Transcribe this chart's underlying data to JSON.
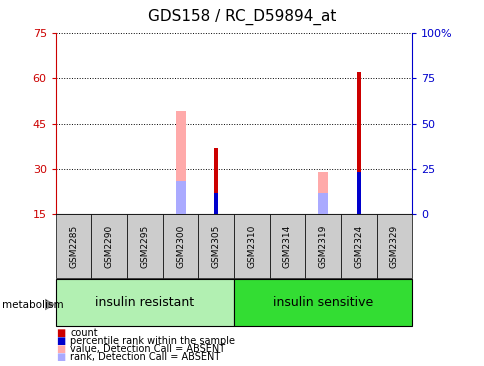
{
  "title": "GDS158 / RC_D59894_at",
  "samples": [
    "GSM2285",
    "GSM2290",
    "GSM2295",
    "GSM2300",
    "GSM2305",
    "GSM2310",
    "GSM2314",
    "GSM2319",
    "GSM2324",
    "GSM2329"
  ],
  "groups": [
    {
      "label": "insulin resistant",
      "start": 0,
      "end": 4,
      "color": "#b2f0b2"
    },
    {
      "label": "insulin sensitive",
      "start": 5,
      "end": 9,
      "color": "#33dd33"
    }
  ],
  "ylim_left": [
    15,
    75
  ],
  "ylim_right": [
    0,
    100
  ],
  "yticks_left": [
    15,
    30,
    45,
    60,
    75
  ],
  "yticks_right": [
    0,
    25,
    50,
    75,
    100
  ],
  "yticklabels_right": [
    "0",
    "25",
    "50",
    "75",
    "100%"
  ],
  "count_bars": {
    "color": "#cc0000",
    "data": [
      0,
      0,
      0,
      0,
      37,
      0,
      0,
      0,
      62,
      0
    ]
  },
  "rank_bars": {
    "color": "#0000cc",
    "data": [
      0,
      0,
      0,
      0,
      22,
      0,
      0,
      0,
      29,
      0
    ]
  },
  "absent_value_bars": {
    "color": "#ffaaaa",
    "data": [
      0,
      0,
      0,
      49,
      0,
      0,
      0,
      29,
      0,
      0
    ]
  },
  "absent_rank_bars": {
    "color": "#aaaaff",
    "data": [
      0,
      0,
      0,
      26,
      0,
      0,
      0,
      22,
      0,
      0
    ]
  },
  "legend_items": [
    {
      "color": "#cc0000",
      "label": "count"
    },
    {
      "color": "#0000cc",
      "label": "percentile rank within the sample"
    },
    {
      "color": "#ffaaaa",
      "label": "value, Detection Call = ABSENT"
    },
    {
      "color": "#aaaaff",
      "label": "rank, Detection Call = ABSENT"
    }
  ],
  "left_axis_color": "#cc0000",
  "right_axis_color": "#0000cc",
  "xlabel_area_color": "#cccccc",
  "group_label_fontsize": 9,
  "tick_fontsize": 8,
  "title_fontsize": 11,
  "absent_bar_width": 0.28,
  "count_bar_width": 0.1
}
